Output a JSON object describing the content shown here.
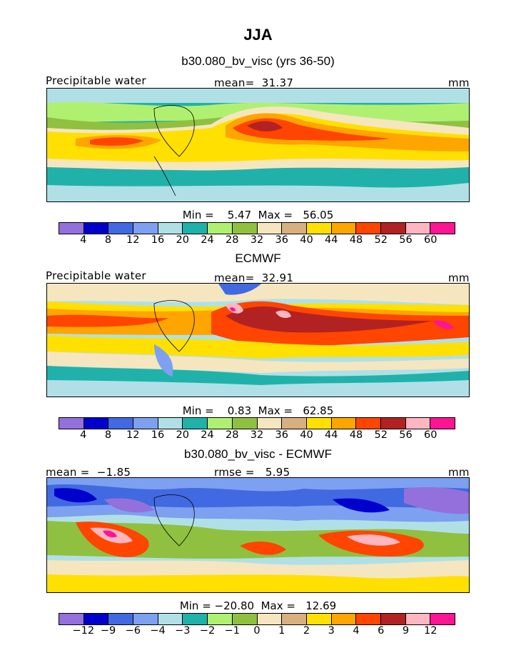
{
  "title": "JJA",
  "colors": [
    "#9370DB",
    "#0000CD",
    "#4169E1",
    "#7DA0F0",
    "#B0E0E6",
    "#20B2AA",
    "#B0F070",
    "#90C040",
    "#F5E6C0",
    "#D8B080",
    "#FFE000",
    "#FFA500",
    "#FF4500",
    "#B22222",
    "#FFB6C1",
    "#FF1493"
  ],
  "panels": [
    {
      "heading": "b30.080_bv_visc (yrs 36-50)",
      "left_label": "Precipitable water",
      "center_label": "mean=  31.37",
      "right_label": "mm",
      "minmax": "Min =    5.47  Max =   56.05",
      "ticks": [
        "4",
        "8",
        "12",
        "16",
        "20",
        "24",
        "28",
        "32",
        "36",
        "40",
        "44",
        "48",
        "52",
        "56",
        "60"
      ]
    },
    {
      "heading": "ECMWF",
      "left_label": "Precipitable water",
      "center_label": "mean=  32.91",
      "right_label": "mm",
      "minmax": "Min =    0.83  Max =   62.85",
      "ticks": [
        "4",
        "8",
        "12",
        "16",
        "20",
        "24",
        "28",
        "32",
        "36",
        "40",
        "44",
        "48",
        "52",
        "56",
        "60"
      ]
    },
    {
      "heading": "b30.080_bv_visc - ECMWF",
      "left_label": "mean =  −1.85",
      "center_label": "rmse =   5.95",
      "right_label": "mm",
      "minmax": "Min = −20.80  Max =   12.69",
      "ticks": [
        "−12",
        "−9",
        "−6",
        "−4",
        "−3",
        "−2",
        "−1",
        "0",
        "1",
        "2",
        "3",
        "4",
        "6",
        "9",
        "12"
      ]
    }
  ]
}
